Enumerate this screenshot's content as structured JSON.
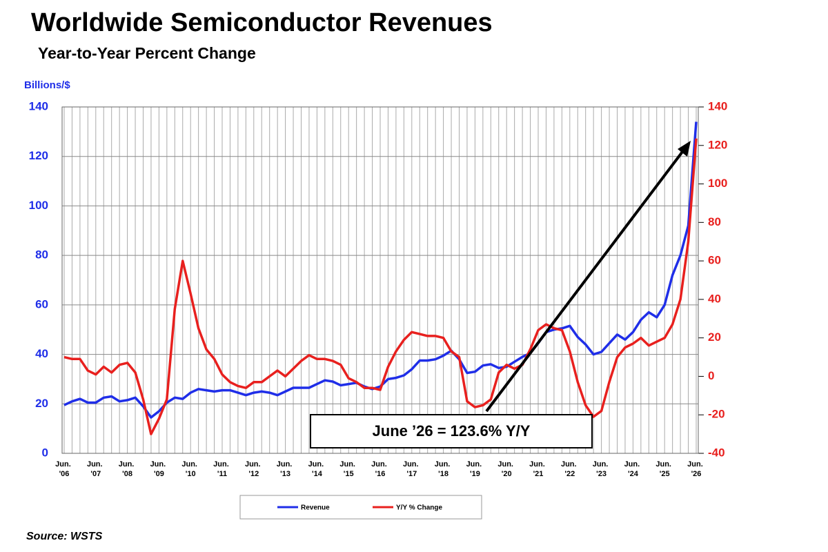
{
  "chart_data": {
    "type": "line",
    "title": "Worldwide Semiconductor Revenues",
    "subtitle": "Year-to-Year Percent Change",
    "y_label": "Billions/$",
    "annotation": "June ’26 = 123.6% Y/Y",
    "source": "Source: WSTS",
    "categories": [
      "Jun. '06",
      null,
      null,
      null,
      "Jun. '07",
      null,
      null,
      null,
      "Jun. '08",
      null,
      null,
      null,
      "Jun. '09",
      null,
      null,
      null,
      "Jun. '10",
      null,
      null,
      null,
      "Jun. '11",
      null,
      null,
      null,
      "Jun. '12",
      null,
      null,
      null,
      "Jun. '13",
      null,
      null,
      null,
      "Jun. '14",
      null,
      null,
      null,
      "Jun. '15",
      null,
      null,
      null,
      "Jun. '16",
      null,
      null,
      null,
      "Jun. '17",
      null,
      null,
      null,
      "Jun. '18",
      null,
      null,
      null,
      "Jun. '19",
      null,
      null,
      null,
      "Jun. '20",
      null,
      null,
      null,
      "Jun. '21",
      null,
      null,
      null,
      "Jun. '22",
      null,
      null,
      null,
      "Jun. '23",
      null,
      null,
      null,
      "Jun. '24",
      null,
      null,
      null,
      "Jun. '25",
      null,
      null,
      null,
      "Jun. '26"
    ],
    "series": [
      {
        "name": "Revenue",
        "color": "#1f2ee8",
        "axis": "y",
        "values": [
          19.5,
          21,
          22,
          20.5,
          20.5,
          22.5,
          23,
          21,
          21.5,
          22.5,
          19,
          14.5,
          17,
          20.5,
          22.5,
          22,
          24.5,
          26,
          25.5,
          25,
          25.5,
          25.5,
          24.5,
          23.5,
          24.5,
          25,
          24.5,
          23.5,
          25,
          26.5,
          26.5,
          26.5,
          28,
          29.5,
          29,
          27.5,
          28,
          28.5,
          27,
          26,
          27,
          30,
          30.5,
          31.5,
          34,
          37.5,
          37.5,
          38,
          39.5,
          41.5,
          38,
          32.5,
          33,
          35.5,
          36,
          34.5,
          35,
          37,
          39,
          40.5,
          44.5,
          49,
          50,
          50.5,
          51.5,
          47,
          44,
          40,
          41,
          44.5,
          48,
          46,
          49,
          54,
          57,
          55,
          60,
          72,
          80,
          92,
          134
        ]
      },
      {
        "name": "Y/Y % Change",
        "color": "#e8201e",
        "axis": "y2",
        "values": [
          10,
          9,
          9,
          3,
          1,
          5,
          2,
          6,
          7,
          2,
          -12,
          -30,
          -22,
          -12,
          35,
          60,
          43,
          25,
          14,
          9,
          1,
          -3,
          -5,
          -6,
          -3,
          -3,
          0,
          3,
          0,
          4,
          8,
          11,
          9,
          9,
          8,
          6,
          -1,
          -3,
          -6,
          -6,
          -7,
          5,
          13,
          19,
          23,
          22,
          21,
          21,
          20,
          13,
          10,
          -13,
          -16,
          -15,
          -12,
          2,
          6,
          4,
          6,
          14,
          24,
          27,
          25,
          24,
          13,
          -3,
          -15,
          -21,
          -18,
          -3,
          10,
          15,
          17,
          20,
          16,
          18,
          20,
          27,
          40,
          70,
          123.6
        ]
      }
    ],
    "ylim": [
      0,
      140
    ],
    "yticks": [
      0,
      20,
      40,
      60,
      80,
      100,
      120,
      140
    ],
    "y2lim": [
      -40,
      140
    ],
    "y2ticks": [
      -40,
      -20,
      0,
      20,
      40,
      60,
      80,
      100,
      120,
      140
    ],
    "grid": true
  }
}
